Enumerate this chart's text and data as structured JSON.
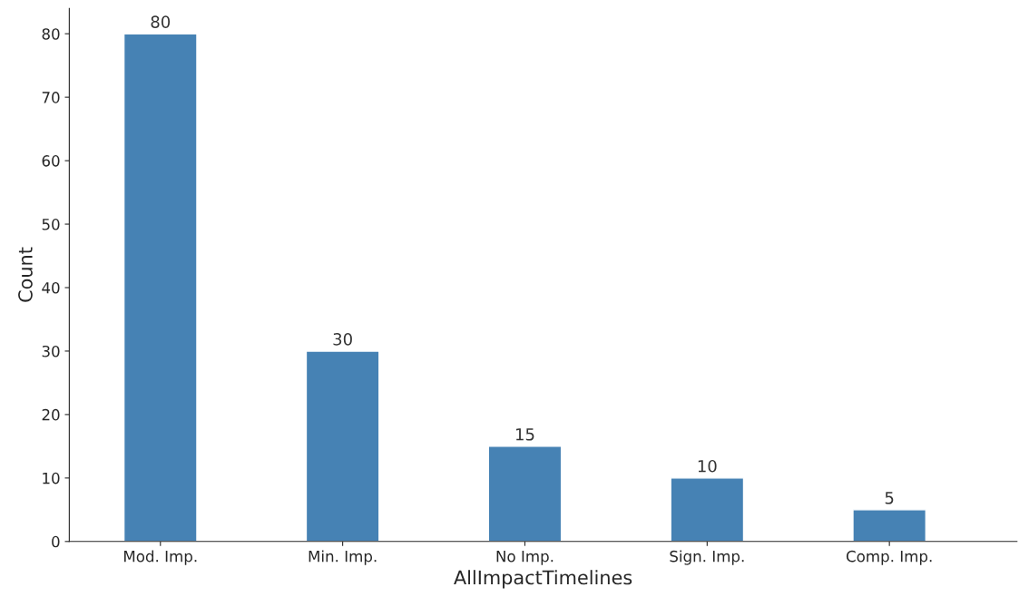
{
  "chart_data": {
    "type": "bar",
    "xlabel": "AllImpactTimelines",
    "ylabel": "Count",
    "categories": [
      "Mod. Imp.",
      "Min. Imp.",
      "No Imp.",
      "Sign. Imp.",
      "Comp. Imp."
    ],
    "values": [
      80,
      30,
      15,
      10,
      5
    ],
    "color": "#4682b4",
    "ylim": [
      0,
      84
    ],
    "yticks": [
      0,
      10,
      20,
      30,
      40,
      50,
      60,
      70,
      80
    ],
    "data_labels": true,
    "grid": false
  }
}
